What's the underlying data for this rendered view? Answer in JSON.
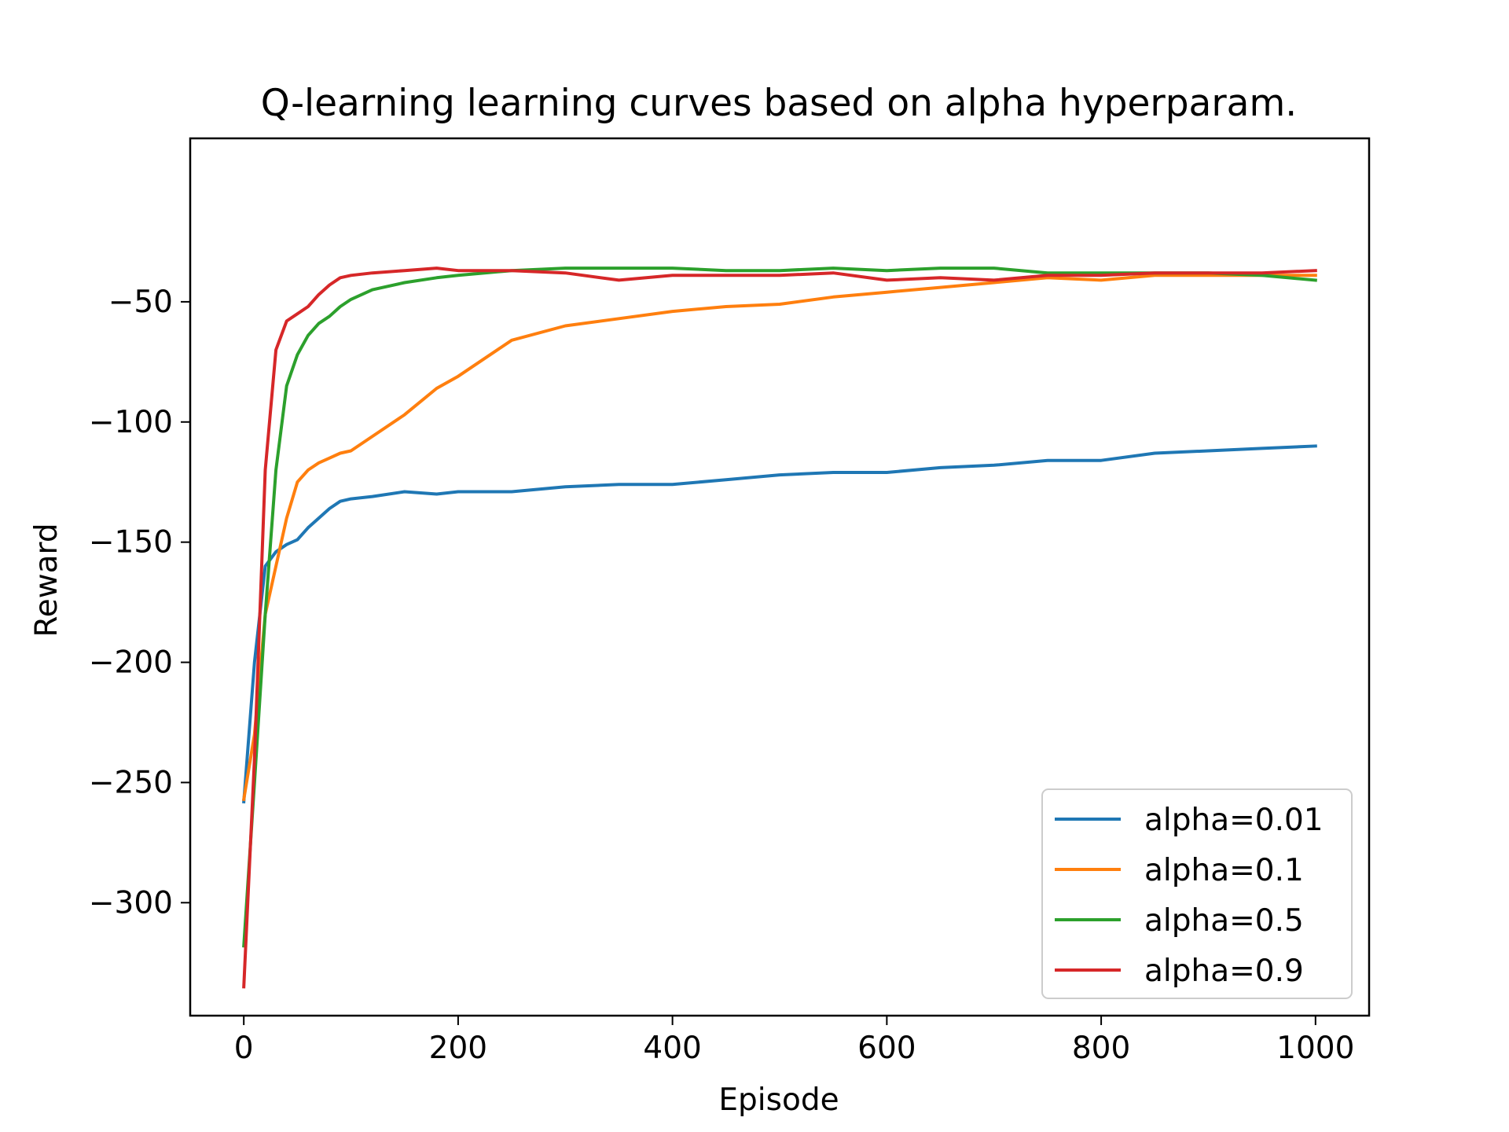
{
  "chart_data": {
    "type": "line",
    "title": "Q-learning learning curves based on alpha hyperparam.",
    "xlabel": "Episode",
    "ylabel": "Reward",
    "xlim": [
      -50,
      1050
    ],
    "ylim": [
      -347,
      18
    ],
    "xticks": [
      0,
      200,
      400,
      600,
      800,
      1000
    ],
    "yticks": [
      -50,
      -100,
      -150,
      -200,
      -250,
      -300
    ],
    "xtick_labels": [
      "0",
      "200",
      "400",
      "600",
      "800",
      "1000"
    ],
    "ytick_labels": [
      "−50",
      "−100",
      "−150",
      "−200",
      "−250",
      "−300"
    ],
    "grid": false,
    "legend_position": "lower-right",
    "series": [
      {
        "name": "alpha=0.01",
        "color": "#1f77b4",
        "x": [
          0,
          10,
          20,
          30,
          40,
          50,
          60,
          70,
          80,
          90,
          100,
          120,
          150,
          180,
          200,
          250,
          300,
          350,
          400,
          450,
          500,
          550,
          600,
          650,
          700,
          750,
          800,
          850,
          900,
          950,
          1000
        ],
        "y": [
          -258,
          -200,
          -160,
          -154,
          -151,
          -149,
          -144,
          -140,
          -136,
          -133,
          -132,
          -131,
          -129,
          -130,
          -129,
          -129,
          -127,
          -126,
          -126,
          -124,
          -122,
          -121,
          -121,
          -119,
          -118,
          -116,
          -116,
          -113,
          -112,
          -111,
          -110
        ]
      },
      {
        "name": "alpha=0.1",
        "color": "#ff7f0e",
        "x": [
          0,
          10,
          20,
          30,
          40,
          50,
          60,
          70,
          80,
          90,
          100,
          120,
          150,
          180,
          200,
          250,
          300,
          350,
          400,
          450,
          500,
          550,
          600,
          650,
          700,
          750,
          800,
          850,
          900,
          950,
          1000
        ],
        "y": [
          -257,
          -230,
          -180,
          -160,
          -140,
          -125,
          -120,
          -117,
          -115,
          -113,
          -112,
          -106,
          -97,
          -86,
          -81,
          -66,
          -60,
          -57,
          -54,
          -52,
          -51,
          -48,
          -46,
          -44,
          -42,
          -40,
          -41,
          -39,
          -39,
          -39,
          -39
        ]
      },
      {
        "name": "alpha=0.5",
        "color": "#2ca02c",
        "x": [
          0,
          10,
          20,
          30,
          40,
          50,
          60,
          70,
          80,
          90,
          100,
          120,
          150,
          180,
          200,
          250,
          300,
          350,
          400,
          450,
          500,
          550,
          600,
          650,
          700,
          750,
          800,
          850,
          900,
          950,
          1000
        ],
        "y": [
          -318,
          -250,
          -180,
          -120,
          -85,
          -72,
          -64,
          -59,
          -56,
          -52,
          -49,
          -45,
          -42,
          -40,
          -39,
          -37,
          -36,
          -36,
          -36,
          -37,
          -37,
          -36,
          -37,
          -36,
          -36,
          -38,
          -38,
          -38,
          -38,
          -39,
          -41
        ]
      },
      {
        "name": "alpha=0.9",
        "color": "#d62728",
        "x": [
          0,
          10,
          20,
          30,
          40,
          50,
          60,
          70,
          80,
          90,
          100,
          120,
          150,
          180,
          200,
          250,
          300,
          350,
          400,
          450,
          500,
          550,
          600,
          650,
          700,
          750,
          800,
          850,
          900,
          950,
          1000
        ],
        "y": [
          -335,
          -240,
          -120,
          -70,
          -58,
          -55,
          -52,
          -47,
          -43,
          -40,
          -39,
          -38,
          -37,
          -36,
          -37,
          -37,
          -38,
          -41,
          -39,
          -39,
          -39,
          -38,
          -41,
          -40,
          -41,
          -39,
          -39,
          -38,
          -38,
          -38,
          -37
        ]
      }
    ]
  }
}
